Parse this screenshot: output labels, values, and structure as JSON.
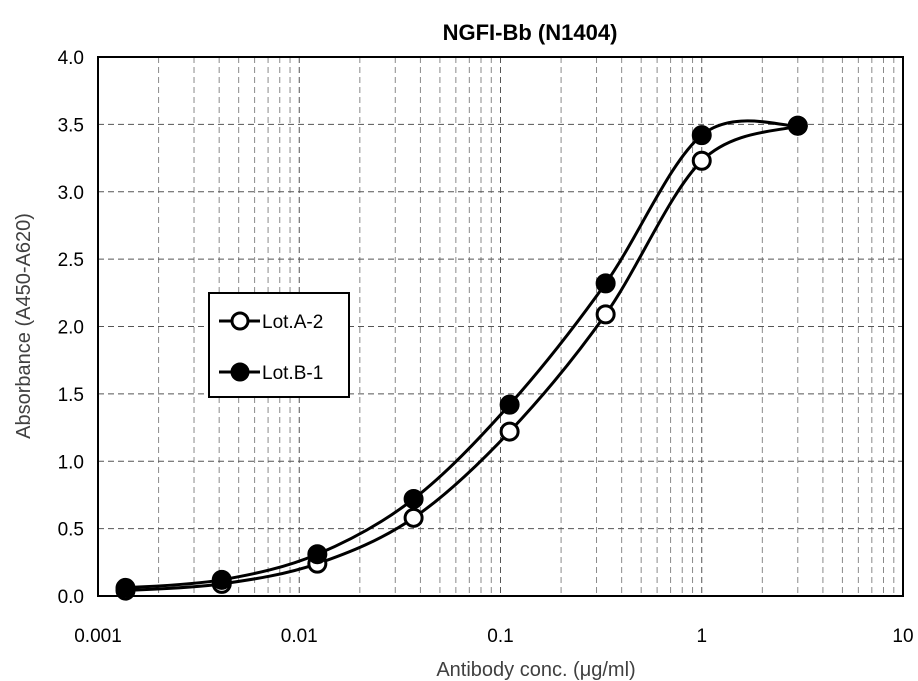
{
  "chart_data": {
    "type": "scatter",
    "title": "NGFI-Bb (N1404)",
    "xlabel": "Antibody conc. (μg/ml)",
    "ylabel": "Absorbance (A450-A620)",
    "xscale": "log",
    "xlim": [
      0.001,
      10
    ],
    "ylim": [
      0.0,
      4.0
    ],
    "x_tick_labels": [
      "0.001",
      "0.01",
      "0.1",
      "1",
      "10"
    ],
    "y_tick_labels": [
      "0.0",
      "0.5",
      "1.0",
      "1.5",
      "2.0",
      "2.5",
      "3.0",
      "3.5",
      "4.0"
    ],
    "grid": true,
    "smooth_lines": true,
    "legend_position": "center-left",
    "x": [
      0.00137,
      0.00412,
      0.0123,
      0.037,
      0.111,
      0.333,
      1,
      3
    ],
    "series": [
      {
        "name": "Lot.A-2",
        "marker": "open-circle",
        "values": [
          0.04,
          0.09,
          0.24,
          0.58,
          1.22,
          2.09,
          3.23,
          3.49
        ]
      },
      {
        "name": "Lot.B-1",
        "marker": "filled-circle",
        "values": [
          0.06,
          0.12,
          0.31,
          0.72,
          1.42,
          2.32,
          3.42,
          3.49
        ]
      }
    ]
  }
}
